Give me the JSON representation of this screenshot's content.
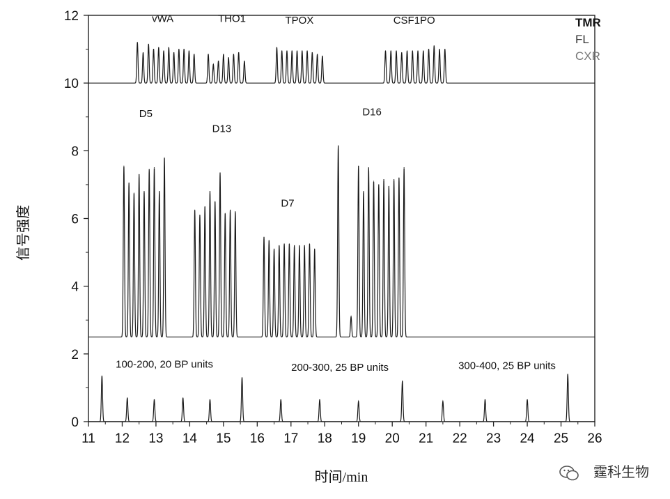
{
  "chart_data": {
    "type": "line",
    "xlabel": "时间/min",
    "ylabel": "信号强度",
    "xlim": [
      11,
      26
    ],
    "ylim": [
      0,
      12
    ],
    "xticks": [
      11,
      12,
      13,
      14,
      15,
      16,
      17,
      18,
      19,
      20,
      21,
      22,
      23,
      24,
      25,
      26
    ],
    "yticks": [
      0,
      2,
      4,
      6,
      8,
      10,
      12
    ],
    "grid": false,
    "legend": {
      "entries": [
        "TMR",
        "FL",
        "CXR"
      ],
      "position": "top-right"
    },
    "colors": {
      "TMR": "#111111",
      "FL": "#333333",
      "CXR": "#777777",
      "trace": "#1a1a1a"
    },
    "series": [
      {
        "name": "TMR",
        "baseline": 10.0,
        "peaks": [
          [
            12.45,
            11.2
          ],
          [
            12.62,
            10.9
          ],
          [
            12.78,
            11.15
          ],
          [
            12.93,
            11.0
          ],
          [
            13.08,
            11.05
          ],
          [
            13.23,
            10.95
          ],
          [
            13.38,
            11.05
          ],
          [
            13.53,
            10.9
          ],
          [
            13.68,
            11.0
          ],
          [
            13.83,
            11.0
          ],
          [
            13.98,
            10.95
          ],
          [
            14.13,
            10.85
          ],
          [
            14.55,
            10.85
          ],
          [
            14.7,
            10.55
          ],
          [
            14.85,
            10.65
          ],
          [
            15.0,
            10.85
          ],
          [
            15.15,
            10.75
          ],
          [
            15.3,
            10.85
          ],
          [
            15.45,
            10.9
          ],
          [
            15.62,
            10.65
          ],
          [
            16.58,
            11.05
          ],
          [
            16.73,
            10.95
          ],
          [
            16.88,
            10.95
          ],
          [
            17.03,
            10.95
          ],
          [
            17.18,
            10.95
          ],
          [
            17.33,
            10.95
          ],
          [
            17.48,
            10.95
          ],
          [
            17.63,
            10.9
          ],
          [
            17.78,
            10.85
          ],
          [
            17.93,
            10.8
          ],
          [
            19.8,
            10.95
          ],
          [
            19.96,
            10.95
          ],
          [
            20.12,
            10.95
          ],
          [
            20.28,
            10.9
          ],
          [
            20.44,
            10.95
          ],
          [
            20.6,
            10.95
          ],
          [
            20.76,
            10.95
          ],
          [
            20.92,
            10.95
          ],
          [
            21.08,
            11.0
          ],
          [
            21.24,
            11.1
          ],
          [
            21.4,
            11.0
          ],
          [
            21.56,
            11.0
          ]
        ]
      },
      {
        "name": "FL",
        "baseline": 2.5,
        "peaks": [
          [
            12.05,
            7.55
          ],
          [
            12.2,
            7.05
          ],
          [
            12.35,
            6.75
          ],
          [
            12.5,
            7.3
          ],
          [
            12.65,
            6.8
          ],
          [
            12.8,
            7.45
          ],
          [
            12.95,
            7.5
          ],
          [
            13.1,
            6.8
          ],
          [
            13.25,
            7.8
          ],
          [
            14.15,
            6.25
          ],
          [
            14.3,
            6.1
          ],
          [
            14.45,
            6.35
          ],
          [
            14.6,
            6.8
          ],
          [
            14.75,
            6.5
          ],
          [
            14.9,
            7.35
          ],
          [
            15.05,
            6.15
          ],
          [
            15.2,
            6.25
          ],
          [
            15.35,
            6.2
          ],
          [
            16.2,
            5.45
          ],
          [
            16.35,
            5.35
          ],
          [
            16.5,
            5.1
          ],
          [
            16.65,
            5.2
          ],
          [
            16.8,
            5.25
          ],
          [
            16.95,
            5.25
          ],
          [
            17.1,
            5.2
          ],
          [
            17.25,
            5.2
          ],
          [
            17.4,
            5.2
          ],
          [
            17.55,
            5.25
          ],
          [
            17.7,
            5.1
          ],
          [
            18.4,
            8.15
          ],
          [
            18.78,
            3.1
          ],
          [
            19.0,
            7.55
          ],
          [
            19.15,
            6.8
          ],
          [
            19.3,
            7.5
          ],
          [
            19.45,
            7.1
          ],
          [
            19.6,
            7.0
          ],
          [
            19.75,
            7.15
          ],
          [
            19.9,
            6.95
          ],
          [
            20.05,
            7.15
          ],
          [
            20.2,
            7.2
          ],
          [
            20.35,
            7.5
          ]
        ]
      },
      {
        "name": "CXR",
        "baseline": 0.0,
        "peaks": [
          [
            11.4,
            1.35
          ],
          [
            12.15,
            0.7
          ],
          [
            12.95,
            0.65
          ],
          [
            13.8,
            0.7
          ],
          [
            14.6,
            0.65
          ],
          [
            15.55,
            1.3
          ],
          [
            16.7,
            0.65
          ],
          [
            17.85,
            0.65
          ],
          [
            19.0,
            0.6
          ],
          [
            20.3,
            1.2
          ],
          [
            21.5,
            0.6
          ],
          [
            22.75,
            0.65
          ],
          [
            24.0,
            0.65
          ],
          [
            25.2,
            1.4
          ]
        ]
      }
    ],
    "annotations": [
      {
        "text": "vWA",
        "x": 13.2,
        "y": 11.8
      },
      {
        "text": "THO1",
        "x": 15.25,
        "y": 11.8
      },
      {
        "text": "TPOX",
        "x": 17.25,
        "y": 11.75
      },
      {
        "text": "CSF1PO",
        "x": 20.65,
        "y": 11.75
      },
      {
        "text": "D5",
        "x": 12.7,
        "y": 9.0
      },
      {
        "text": "D13",
        "x": 14.95,
        "y": 8.55
      },
      {
        "text": "D7",
        "x": 16.9,
        "y": 6.35
      },
      {
        "text": "D16",
        "x": 19.4,
        "y": 9.05
      },
      {
        "text": "100-200, 20 BP units",
        "x": 13.25,
        "y": 1.6
      },
      {
        "text": "200-300, 25 BP units",
        "x": 18.45,
        "y": 1.5
      },
      {
        "text": "300-400, 25 BP units",
        "x": 23.4,
        "y": 1.55
      }
    ]
  },
  "watermark": {
    "text": "霆科生物",
    "icon": "wechat-icon"
  }
}
